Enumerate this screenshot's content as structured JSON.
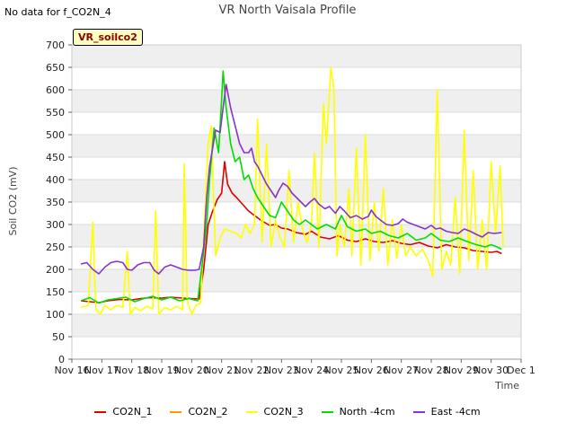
{
  "no_data_text": "No data for f_CO2N_4",
  "chart_data": {
    "type": "line",
    "title": "VR North Vaisala Profile",
    "site_label": "VR_soilco2",
    "xlabel": "Time",
    "ylabel": "Soil CO2 (mV)",
    "ylim": [
      0,
      700
    ],
    "yticks": [
      0,
      50,
      100,
      150,
      200,
      250,
      300,
      350,
      400,
      450,
      500,
      550,
      600,
      650,
      700
    ],
    "xlim": [
      0,
      15
    ],
    "xticks": [
      {
        "v": 0,
        "label": "Nov 16"
      },
      {
        "v": 1,
        "label": "Nov 17"
      },
      {
        "v": 2,
        "label": "Nov 18"
      },
      {
        "v": 3,
        "label": "Nov 19"
      },
      {
        "v": 4,
        "label": "Nov 20"
      },
      {
        "v": 5,
        "label": "Nov 21"
      },
      {
        "v": 6,
        "label": "Nov 22"
      },
      {
        "v": 7,
        "label": "Nov 23"
      },
      {
        "v": 8,
        "label": "Nov 24"
      },
      {
        "v": 9,
        "label": "Nov 25"
      },
      {
        "v": 10,
        "label": "Nov 26"
      },
      {
        "v": 11,
        "label": "Nov 27"
      },
      {
        "v": 12,
        "label": "Nov 28"
      },
      {
        "v": 13,
        "label": "Nov 29"
      },
      {
        "v": 14,
        "label": "Nov 30"
      },
      {
        "v": 15,
        "label": "Dec 1"
      }
    ],
    "grid": "horizontal-bands",
    "legend_position": "bottom",
    "series": [
      {
        "name": "CO2N_1",
        "color": "#dd0000",
        "points": [
          [
            0.3,
            130
          ],
          [
            0.6,
            128
          ],
          [
            0.9,
            126
          ],
          [
            1.2,
            130
          ],
          [
            1.6,
            133
          ],
          [
            2.0,
            132
          ],
          [
            2.3,
            135
          ],
          [
            2.6,
            137
          ],
          [
            3.0,
            136
          ],
          [
            3.3,
            138
          ],
          [
            3.7,
            136
          ],
          [
            4.0,
            135
          ],
          [
            4.25,
            134
          ],
          [
            4.4,
            200
          ],
          [
            4.55,
            300
          ],
          [
            4.7,
            330
          ],
          [
            4.85,
            355
          ],
          [
            5.0,
            370
          ],
          [
            5.1,
            440
          ],
          [
            5.2,
            390
          ],
          [
            5.35,
            370
          ],
          [
            5.5,
            360
          ],
          [
            5.7,
            345
          ],
          [
            5.9,
            330
          ],
          [
            6.1,
            320
          ],
          [
            6.3,
            310
          ],
          [
            6.6,
            298
          ],
          [
            6.8,
            300
          ],
          [
            7.0,
            292
          ],
          [
            7.2,
            290
          ],
          [
            7.5,
            282
          ],
          [
            7.8,
            278
          ],
          [
            8.0,
            285
          ],
          [
            8.3,
            272
          ],
          [
            8.6,
            268
          ],
          [
            8.9,
            275
          ],
          [
            9.2,
            265
          ],
          [
            9.5,
            262
          ],
          [
            9.8,
            268
          ],
          [
            10.1,
            262
          ],
          [
            10.4,
            260
          ],
          [
            10.7,
            264
          ],
          [
            11.0,
            258
          ],
          [
            11.3,
            255
          ],
          [
            11.6,
            260
          ],
          [
            11.9,
            252
          ],
          [
            12.2,
            248
          ],
          [
            12.5,
            255
          ],
          [
            12.8,
            250
          ],
          [
            13.1,
            248
          ],
          [
            13.4,
            242
          ],
          [
            13.7,
            240
          ],
          [
            14.0,
            238
          ],
          [
            14.2,
            240
          ],
          [
            14.35,
            235
          ]
        ]
      },
      {
        "name": "CO2N_2",
        "color": "#ff9900",
        "points": []
      },
      {
        "name": "CO2N_3",
        "color": "#ffff00",
        "points": [
          [
            0.3,
            115
          ],
          [
            0.55,
            120
          ],
          [
            0.7,
            305
          ],
          [
            0.8,
            110
          ],
          [
            0.95,
            100
          ],
          [
            1.1,
            120
          ],
          [
            1.3,
            110
          ],
          [
            1.5,
            120
          ],
          [
            1.7,
            115
          ],
          [
            1.85,
            240
          ],
          [
            1.95,
            100
          ],
          [
            2.1,
            115
          ],
          [
            2.3,
            108
          ],
          [
            2.5,
            118
          ],
          [
            2.7,
            112
          ],
          [
            2.8,
            330
          ],
          [
            2.9,
            100
          ],
          [
            3.1,
            115
          ],
          [
            3.3,
            110
          ],
          [
            3.5,
            118
          ],
          [
            3.7,
            110
          ],
          [
            3.75,
            435
          ],
          [
            3.85,
            130
          ],
          [
            4.0,
            100
          ],
          [
            4.15,
            120
          ],
          [
            4.3,
            125
          ],
          [
            4.45,
            340
          ],
          [
            4.55,
            480
          ],
          [
            4.65,
            520
          ],
          [
            4.8,
            230
          ],
          [
            4.95,
            270
          ],
          [
            5.1,
            290
          ],
          [
            5.3,
            285
          ],
          [
            5.5,
            280
          ],
          [
            5.65,
            270
          ],
          [
            5.8,
            300
          ],
          [
            5.95,
            280
          ],
          [
            6.1,
            300
          ],
          [
            6.2,
            535
          ],
          [
            6.35,
            260
          ],
          [
            6.5,
            480
          ],
          [
            6.65,
            250
          ],
          [
            6.8,
            310
          ],
          [
            6.95,
            270
          ],
          [
            7.1,
            250
          ],
          [
            7.25,
            420
          ],
          [
            7.4,
            260
          ],
          [
            7.55,
            350
          ],
          [
            7.7,
            290
          ],
          [
            7.85,
            260
          ],
          [
            8.0,
            300
          ],
          [
            8.1,
            460
          ],
          [
            8.25,
            250
          ],
          [
            8.4,
            570
          ],
          [
            8.5,
            480
          ],
          [
            8.65,
            650
          ],
          [
            8.75,
            600
          ],
          [
            8.85,
            230
          ],
          [
            8.95,
            300
          ],
          [
            9.1,
            250
          ],
          [
            9.25,
            380
          ],
          [
            9.35,
            230
          ],
          [
            9.5,
            470
          ],
          [
            9.65,
            210
          ],
          [
            9.8,
            500
          ],
          [
            9.95,
            220
          ],
          [
            10.1,
            350
          ],
          [
            10.25,
            240
          ],
          [
            10.4,
            380
          ],
          [
            10.55,
            210
          ],
          [
            10.7,
            310
          ],
          [
            10.85,
            225
          ],
          [
            11.0,
            300
          ],
          [
            11.15,
            230
          ],
          [
            11.3,
            250
          ],
          [
            11.5,
            230
          ],
          [
            11.7,
            245
          ],
          [
            11.9,
            220
          ],
          [
            12.05,
            185
          ],
          [
            12.2,
            600
          ],
          [
            12.35,
            200
          ],
          [
            12.5,
            240
          ],
          [
            12.65,
            210
          ],
          [
            12.8,
            360
          ],
          [
            12.95,
            190
          ],
          [
            13.1,
            510
          ],
          [
            13.25,
            220
          ],
          [
            13.4,
            420
          ],
          [
            13.55,
            200
          ],
          [
            13.7,
            310
          ],
          [
            13.85,
            200
          ],
          [
            14.0,
            440
          ],
          [
            14.15,
            280
          ],
          [
            14.3,
            430
          ],
          [
            14.4,
            250
          ]
        ]
      },
      {
        "name": "North -4cm",
        "color": "#00dd00",
        "points": [
          [
            0.3,
            130
          ],
          [
            0.6,
            137
          ],
          [
            0.9,
            125
          ],
          [
            1.2,
            132
          ],
          [
            1.5,
            135
          ],
          [
            1.8,
            138
          ],
          [
            2.1,
            128
          ],
          [
            2.4,
            135
          ],
          [
            2.7,
            140
          ],
          [
            3.0,
            132
          ],
          [
            3.3,
            138
          ],
          [
            3.6,
            130
          ],
          [
            3.9,
            135
          ],
          [
            4.2,
            130
          ],
          [
            4.35,
            210
          ],
          [
            4.5,
            300
          ],
          [
            4.6,
            400
          ],
          [
            4.75,
            515
          ],
          [
            4.9,
            460
          ],
          [
            5.0,
            580
          ],
          [
            5.05,
            642
          ],
          [
            5.15,
            560
          ],
          [
            5.3,
            480
          ],
          [
            5.45,
            440
          ],
          [
            5.6,
            450
          ],
          [
            5.75,
            400
          ],
          [
            5.9,
            410
          ],
          [
            6.05,
            380
          ],
          [
            6.2,
            360
          ],
          [
            6.4,
            340
          ],
          [
            6.6,
            320
          ],
          [
            6.8,
            315
          ],
          [
            7.0,
            350
          ],
          [
            7.2,
            330
          ],
          [
            7.4,
            310
          ],
          [
            7.6,
            300
          ],
          [
            7.8,
            310
          ],
          [
            8.0,
            300
          ],
          [
            8.2,
            290
          ],
          [
            8.5,
            300
          ],
          [
            8.8,
            290
          ],
          [
            9.0,
            320
          ],
          [
            9.2,
            295
          ],
          [
            9.5,
            285
          ],
          [
            9.8,
            290
          ],
          [
            10.0,
            280
          ],
          [
            10.3,
            285
          ],
          [
            10.6,
            275
          ],
          [
            10.9,
            270
          ],
          [
            11.2,
            280
          ],
          [
            11.5,
            265
          ],
          [
            11.8,
            270
          ],
          [
            12.0,
            280
          ],
          [
            12.3,
            265
          ],
          [
            12.6,
            262
          ],
          [
            12.9,
            270
          ],
          [
            13.2,
            262
          ],
          [
            13.5,
            255
          ],
          [
            13.8,
            250
          ],
          [
            14.0,
            255
          ],
          [
            14.2,
            250
          ],
          [
            14.35,
            245
          ]
        ]
      },
      {
        "name": "East -4cm",
        "color": "#8833cc",
        "points": [
          [
            0.3,
            212
          ],
          [
            0.5,
            215
          ],
          [
            0.7,
            200
          ],
          [
            0.9,
            190
          ],
          [
            1.1,
            205
          ],
          [
            1.3,
            215
          ],
          [
            1.5,
            218
          ],
          [
            1.7,
            215
          ],
          [
            1.85,
            200
          ],
          [
            2.0,
            198
          ],
          [
            2.2,
            210
          ],
          [
            2.4,
            215
          ],
          [
            2.6,
            215
          ],
          [
            2.75,
            198
          ],
          [
            2.9,
            190
          ],
          [
            3.1,
            205
          ],
          [
            3.3,
            210
          ],
          [
            3.5,
            205
          ],
          [
            3.7,
            200
          ],
          [
            3.9,
            198
          ],
          [
            4.1,
            198
          ],
          [
            4.25,
            200
          ],
          [
            4.4,
            250
          ],
          [
            4.5,
            360
          ],
          [
            4.6,
            430
          ],
          [
            4.7,
            470
          ],
          [
            4.8,
            510
          ],
          [
            4.95,
            505
          ],
          [
            5.05,
            560
          ],
          [
            5.15,
            612
          ],
          [
            5.3,
            560
          ],
          [
            5.45,
            520
          ],
          [
            5.6,
            480
          ],
          [
            5.75,
            460
          ],
          [
            5.9,
            460
          ],
          [
            6.0,
            470
          ],
          [
            6.1,
            440
          ],
          [
            6.2,
            430
          ],
          [
            6.35,
            410
          ],
          [
            6.5,
            390
          ],
          [
            6.65,
            375
          ],
          [
            6.8,
            360
          ],
          [
            6.9,
            375
          ],
          [
            7.05,
            392
          ],
          [
            7.2,
            385
          ],
          [
            7.35,
            370
          ],
          [
            7.5,
            360
          ],
          [
            7.65,
            350
          ],
          [
            7.8,
            340
          ],
          [
            7.95,
            350
          ],
          [
            8.1,
            358
          ],
          [
            8.25,
            345
          ],
          [
            8.45,
            335
          ],
          [
            8.6,
            340
          ],
          [
            8.8,
            325
          ],
          [
            8.95,
            340
          ],
          [
            9.1,
            330
          ],
          [
            9.3,
            315
          ],
          [
            9.5,
            320
          ],
          [
            9.7,
            312
          ],
          [
            9.9,
            318
          ],
          [
            10.0,
            332
          ],
          [
            10.15,
            318
          ],
          [
            10.3,
            310
          ],
          [
            10.5,
            300
          ],
          [
            10.7,
            298
          ],
          [
            10.9,
            302
          ],
          [
            11.05,
            312
          ],
          [
            11.2,
            305
          ],
          [
            11.4,
            300
          ],
          [
            11.6,
            295
          ],
          [
            11.8,
            290
          ],
          [
            12.0,
            298
          ],
          [
            12.15,
            290
          ],
          [
            12.3,
            292
          ],
          [
            12.5,
            285
          ],
          [
            12.7,
            282
          ],
          [
            12.9,
            280
          ],
          [
            13.1,
            290
          ],
          [
            13.3,
            285
          ],
          [
            13.5,
            278
          ],
          [
            13.7,
            272
          ],
          [
            13.9,
            282
          ],
          [
            14.1,
            280
          ],
          [
            14.35,
            282
          ]
        ]
      }
    ]
  }
}
